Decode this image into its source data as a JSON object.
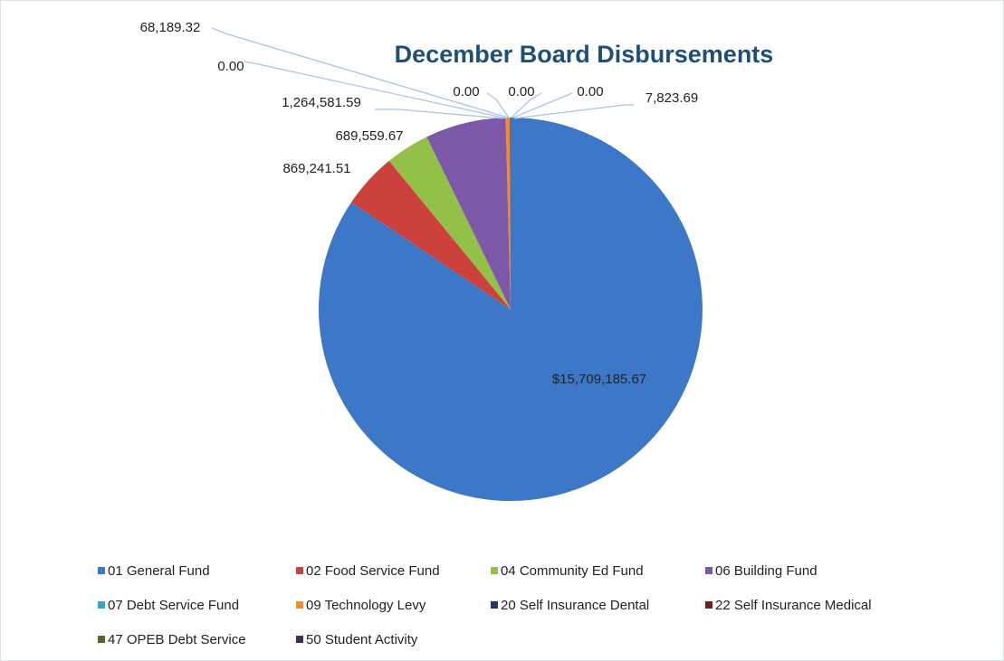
{
  "chart_data": {
    "type": "pie",
    "title": "December Board Disbursements",
    "categories": [
      "01 General Fund",
      "02 Food Service Fund",
      "04 Community Ed Fund",
      "06 Building Fund",
      "07 Debt Service Fund",
      "09 Technology Levy",
      "20 Self Insurance Dental",
      "22 Self Insurance Medical",
      "47 OPEB Debt Service",
      "50 Student Activity"
    ],
    "values": [
      15709185.67,
      869241.51,
      689559.67,
      1264581.59,
      0,
      68189.32,
      0,
      0,
      0,
      7823.69
    ],
    "value_labels": [
      "$15,709,185.67",
      "869,241.51",
      "689,559.67",
      "1,264,581.59",
      "0.00",
      "68,189.32",
      "0.00",
      "0.00",
      "0.00",
      "7,823.69"
    ],
    "colors": [
      "#3d78c8",
      "#cc413b",
      "#93c047",
      "#7e58a8",
      "#2fa9c9",
      "#f28c28",
      "#1f3864",
      "#7b1c1c",
      "#4f6b20",
      "#3f2d5e"
    ],
    "legend": "bottom"
  }
}
